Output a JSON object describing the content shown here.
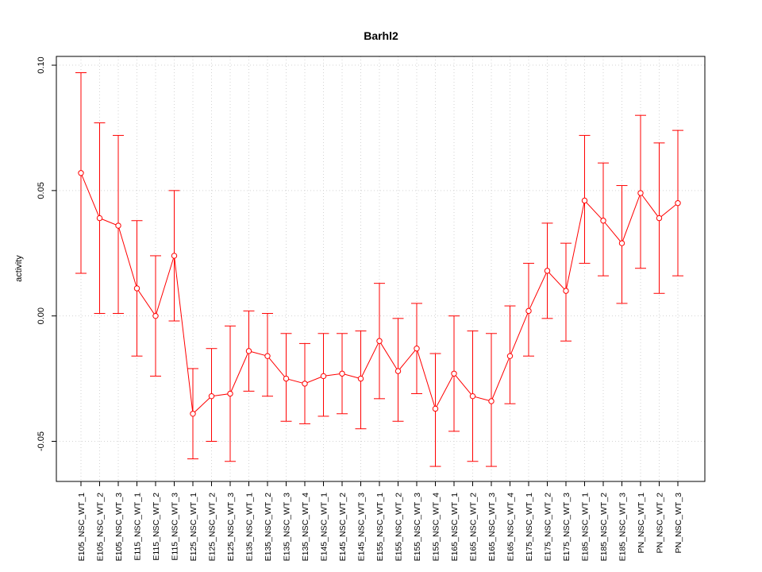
{
  "chart_data": {
    "type": "line",
    "title": "Barhl2",
    "xlabel": "",
    "ylabel": "activity",
    "ylim": [
      -0.066,
      0.1035
    ],
    "yticks": [
      -0.05,
      0.0,
      0.05,
      0.1
    ],
    "ytick_labels": [
      "-0.05",
      "0.00",
      "0.05",
      "0.10"
    ],
    "grid": true,
    "series_color": "#ff0000",
    "grid_color": "#d3d3d3",
    "categories": [
      "E105_NSC_WT_1",
      "E105_NSC_WT_2",
      "E105_NSC_WT_3",
      "E115_NSC_WT_1",
      "E115_NSC_WT_2",
      "E115_NSC_WT_3",
      "E125_NSC_WT_1",
      "E125_NSC_WT_2",
      "E125_NSC_WT_3",
      "E135_NSC_WT_1",
      "E135_NSC_WT_2",
      "E135_NSC_WT_3",
      "E135_NSC_WT_4",
      "E145_NSC_WT_1",
      "E145_NSC_WT_2",
      "E145_NSC_WT_3",
      "E155_NSC_WT_1",
      "E155_NSC_WT_2",
      "E155_NSC_WT_3",
      "E155_NSC_WT_4",
      "E165_NSC_WT_1",
      "E165_NSC_WT_2",
      "E165_NSC_WT_3",
      "E165_NSC_WT_4",
      "E175_NSC_WT_1",
      "E175_NSC_WT_2",
      "E175_NSC_WT_3",
      "E185_NSC_WT_1",
      "E185_NSC_WT_2",
      "E185_NSC_WT_3",
      "PN_NSC_WT_1",
      "PN_NSC_WT_2",
      "PN_NSC_WT_3"
    ],
    "values": [
      0.057,
      0.039,
      0.036,
      0.011,
      0.0,
      0.024,
      -0.039,
      -0.032,
      -0.031,
      -0.014,
      -0.016,
      -0.025,
      -0.027,
      -0.024,
      -0.023,
      -0.025,
      -0.01,
      -0.022,
      -0.013,
      -0.037,
      -0.023,
      -0.032,
      -0.034,
      -0.016,
      0.002,
      0.018,
      0.01,
      0.046,
      0.038,
      0.029,
      0.049,
      0.039,
      0.045
    ],
    "error_low": [
      0.017,
      0.001,
      0.001,
      -0.016,
      -0.024,
      -0.002,
      -0.057,
      -0.05,
      -0.058,
      -0.03,
      -0.032,
      -0.042,
      -0.043,
      -0.04,
      -0.039,
      -0.045,
      -0.033,
      -0.042,
      -0.031,
      -0.06,
      -0.046,
      -0.058,
      -0.06,
      -0.035,
      -0.016,
      -0.001,
      -0.01,
      0.021,
      0.016,
      0.005,
      0.019,
      0.009,
      0.016
    ],
    "error_high": [
      0.097,
      0.077,
      0.072,
      0.038,
      0.024,
      0.05,
      -0.021,
      -0.013,
      -0.004,
      0.002,
      0.001,
      -0.007,
      -0.011,
      -0.007,
      -0.007,
      -0.006,
      0.013,
      -0.001,
      0.005,
      -0.015,
      0.0,
      -0.006,
      -0.007,
      0.004,
      0.021,
      0.037,
      0.029,
      0.072,
      0.061,
      0.052,
      0.08,
      0.069,
      0.074
    ]
  }
}
